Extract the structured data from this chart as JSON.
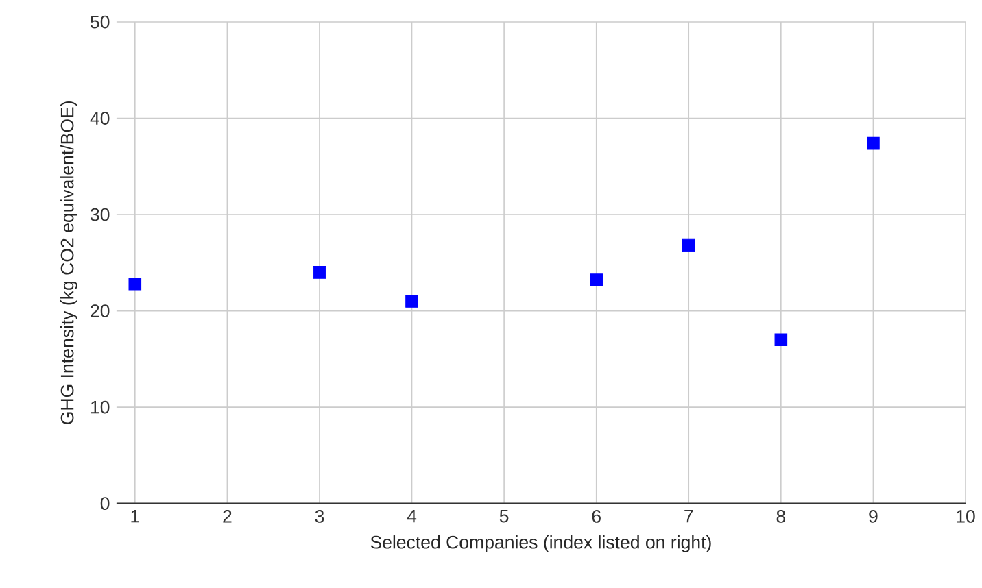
{
  "chart_data": {
    "type": "scatter",
    "xlabel": "Selected Companies (index listed on right)",
    "ylabel": "GHG Intensity (kg CO2 equivalent/BOE)",
    "x": [
      1,
      3,
      4,
      6,
      7,
      8,
      9
    ],
    "series": [
      {
        "color": "#0000ff",
        "values": [
          22.8,
          24.0,
          21.0,
          23.2,
          26.8,
          17.0,
          37.4
        ]
      }
    ],
    "xlim": [
      0.8,
      10
    ],
    "xticks": [
      1,
      2,
      3,
      4,
      5,
      6,
      7,
      8,
      9,
      10
    ],
    "ylim": [
      0,
      50
    ],
    "yticks": [
      0,
      10,
      20,
      30,
      40,
      50
    ],
    "grid": true,
    "marker": "square"
  }
}
